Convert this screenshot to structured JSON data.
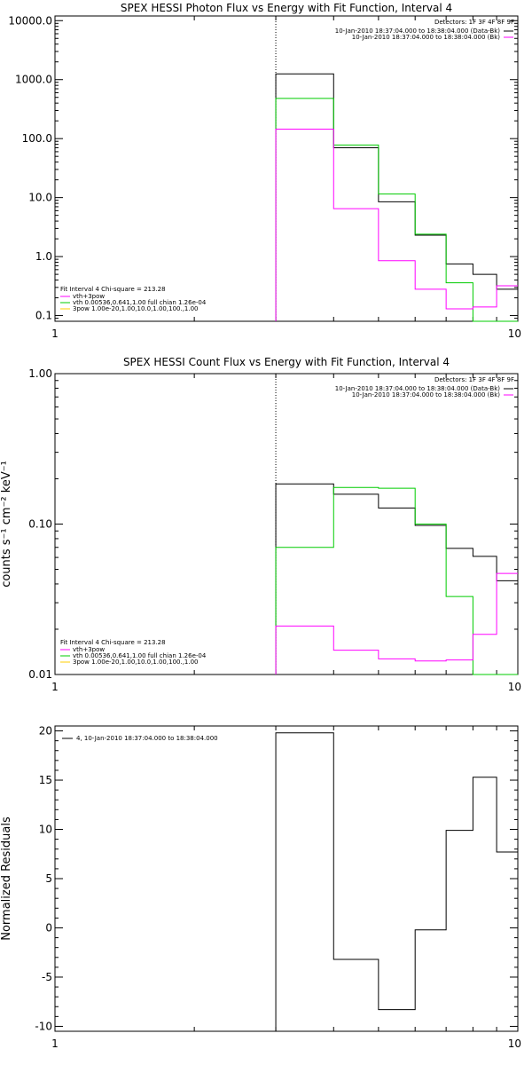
{
  "chart_data": [
    {
      "type": "line",
      "title": "SPEX HESSI Photon Flux vs Energy with Fit Function, Interval 4",
      "xlabel": "",
      "ylabel": "",
      "x_scale": "log",
      "y_scale": "log",
      "xlim": [
        1,
        10
      ],
      "ylim": [
        0.08,
        12000
      ],
      "x_ticks": [
        {
          "v": 1,
          "label": "1"
        },
        {
          "v": 10,
          "label": "10"
        }
      ],
      "y_ticks": [
        {
          "v": 0.1,
          "label": "0.1"
        },
        {
          "v": 1,
          "label": "1.0"
        },
        {
          "v": 10,
          "label": "10.0"
        },
        {
          "v": 100,
          "label": "100.0"
        },
        {
          "v": 1000,
          "label": "1000.0"
        },
        {
          "v": 10000,
          "label": "10000.0"
        }
      ],
      "vline_x": 3,
      "bin_edges": [
        3.0,
        3.5,
        4.0,
        4.5,
        5.0,
        5.5,
        6.0,
        6.5,
        7.0,
        8.0,
        9.0,
        10.0
      ],
      "series": [
        {
          "key": "data",
          "color": "#000000",
          "values": [
            1250,
            1250,
            70,
            70,
            8.5,
            8.5,
            2.3,
            2.3,
            0.75,
            0.5,
            0.28
          ]
        },
        {
          "key": "model",
          "color": "#00cc00",
          "values": [
            480,
            480,
            78,
            78,
            11.5,
            11.5,
            2.4,
            2.4,
            0.36,
            0.06,
            0.06
          ]
        },
        {
          "key": "background",
          "color": "#ff00ff",
          "values": [
            145,
            145,
            6.5,
            6.5,
            0.85,
            0.85,
            0.28,
            0.28,
            0.13,
            0.14,
            0.32
          ]
        }
      ],
      "legend_tr": {
        "placement": "top-right",
        "header": "Detectors: 1F 3F 4F 8F 9F",
        "entries": [
          {
            "text": "10-Jan-2010 18:37:04.000 to 18:38:04.000 (Data-Bk)",
            "color": "#000000"
          },
          {
            "text": "10-Jan-2010 18:37:04.000 to 18:38:04.000 (Bk)",
            "color": "#ff00ff"
          }
        ]
      },
      "legend_bl": {
        "placement": "bottom-left",
        "header": "Fit Interval  4    Chi-square = 213.28",
        "entries": [
          {
            "text": "vth+3pow",
            "color": "#ff00ff"
          },
          {
            "text": "vth 0.00536,0.641,1.00   full chian 1.26e-04",
            "color": "#00cc00"
          },
          {
            "text": "3pow 1.00e-20,1.00,10.0,1.00,100.,1.00",
            "color": "#ffcc00"
          }
        ]
      }
    },
    {
      "type": "line",
      "title": "SPEX HESSI Count Flux vs Energy with Fit Function, Interval 4",
      "xlabel": "",
      "ylabel": "counts s⁻¹ cm⁻² keV⁻¹",
      "x_scale": "log",
      "y_scale": "log",
      "xlim": [
        1,
        10
      ],
      "ylim": [
        0.01,
        1.0
      ],
      "x_ticks": [
        {
          "v": 1,
          "label": "1"
        },
        {
          "v": 10,
          "label": "10"
        }
      ],
      "y_ticks": [
        {
          "v": 0.01,
          "label": "0.01"
        },
        {
          "v": 0.1,
          "label": "0.10"
        },
        {
          "v": 1,
          "label": "1.00"
        }
      ],
      "vline_x": 3,
      "bin_edges": [
        3.0,
        3.5,
        4.0,
        4.5,
        5.0,
        5.5,
        6.0,
        6.5,
        7.0,
        8.0,
        9.0,
        10.0
      ],
      "series": [
        {
          "key": "data",
          "color": "#000000",
          "values": [
            0.185,
            0.185,
            0.158,
            0.158,
            0.128,
            0.128,
            0.098,
            0.098,
            0.069,
            0.061,
            0.042
          ]
        },
        {
          "key": "model",
          "color": "#00cc00",
          "values": [
            0.07,
            0.07,
            0.175,
            0.175,
            0.173,
            0.173,
            0.1,
            0.1,
            0.033,
            0.008,
            0.008
          ]
        },
        {
          "key": "background",
          "color": "#ff00ff",
          "values": [
            0.021,
            0.021,
            0.0145,
            0.0145,
            0.0127,
            0.0127,
            0.0123,
            0.0123,
            0.0125,
            0.0185,
            0.047
          ]
        }
      ],
      "legend_tr": {
        "placement": "top-right",
        "header": "Detectors: 1F 3F 4F 8F 9F",
        "entries": [
          {
            "text": "10-Jan-2010 18:37:04.000 to 18:38:04.000 (Data-Bk)",
            "color": "#000000"
          },
          {
            "text": "10-Jan-2010 18:37:04.000 to 18:38:04.000 (Bk)",
            "color": "#ff00ff"
          }
        ]
      },
      "legend_bl": {
        "placement": "bottom-left",
        "header": "Fit Interval  4    Chi-square = 213.28",
        "entries": [
          {
            "text": "vth+3pow",
            "color": "#ff00ff"
          },
          {
            "text": "vth 0.00536,0.641,1.00   full chian 1.26e-04",
            "color": "#00cc00"
          },
          {
            "text": "3pow 1.00e-20,1.00,10.0,1.00,100.,1.00",
            "color": "#ffcc00"
          }
        ]
      }
    },
    {
      "type": "line",
      "title": "",
      "xlabel": "",
      "ylabel": "Normalized Residuals",
      "x_scale": "log",
      "y_scale": "linear",
      "xlim": [
        1,
        10
      ],
      "ylim": [
        -10.5,
        20.5
      ],
      "x_ticks": [
        {
          "v": 1,
          "label": "1"
        },
        {
          "v": 10,
          "label": "10"
        }
      ],
      "y_ticks": [
        {
          "v": -10,
          "label": "-10"
        },
        {
          "v": -5,
          "label": "-5"
        },
        {
          "v": 0,
          "label": "0"
        },
        {
          "v": 5,
          "label": "5"
        },
        {
          "v": 10,
          "label": "10"
        },
        {
          "v": 15,
          "label": "15"
        },
        {
          "v": 20,
          "label": "20"
        }
      ],
      "vline_x": null,
      "bin_edges": [
        3.0,
        3.5,
        4.0,
        4.5,
        5.0,
        5.5,
        6.0,
        6.5,
        7.0,
        8.0,
        9.0,
        10.0
      ],
      "series": [
        {
          "key": "residuals",
          "color": "#000000",
          "values": [
            19.8,
            19.8,
            -3.2,
            -3.2,
            -8.3,
            -8.3,
            -0.2,
            -0.2,
            9.9,
            15.3,
            7.7
          ]
        }
      ],
      "legend_tr": null,
      "legend_bl": null,
      "legend_tl": {
        "placement": "top-left",
        "entries": [
          {
            "text": "4, 10-Jan-2010 18:37:04.000 to 18:38:04.000",
            "color": "#000000"
          }
        ]
      }
    }
  ]
}
